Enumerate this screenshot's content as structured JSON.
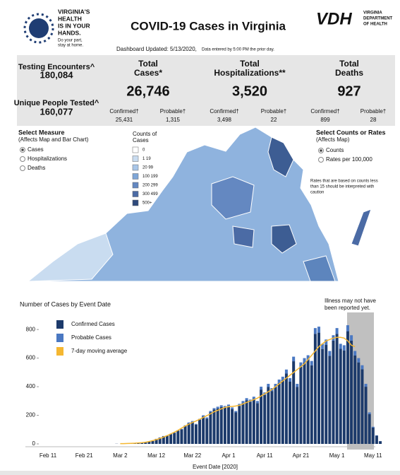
{
  "header": {
    "logo_lines": [
      "VIRGINIA'S",
      "HEALTH",
      "IS IN YOUR",
      "HANDS."
    ],
    "logo_tagline": [
      "Do your part,",
      "stay at home."
    ],
    "title": "COVID-19 Cases in Virginia",
    "agency_mark": "VDH",
    "agency_name": [
      "VIRGINIA",
      "DEPARTMENT",
      "OF HEALTH"
    ],
    "updated": "Dashboard Updated: 5/13/2020,",
    "updated_note": "Data entered by 5:00 PM the prior day."
  },
  "stats": {
    "testing": {
      "label": "Testing Encounters^",
      "value": "180,084"
    },
    "unique": {
      "label": "Unique People Tested^",
      "value": "160,077"
    },
    "cases": {
      "label": [
        "Total",
        "Cases*"
      ],
      "value": "26,746",
      "confirmed_label": "Confirmed†",
      "confirmed": "25,431",
      "probable_label": "Probable†",
      "probable": "1,315"
    },
    "hospitalizations": {
      "label": [
        "Total",
        "Hospitalizations**"
      ],
      "value": "3,520",
      "confirmed_label": "Confirmed†",
      "confirmed": "3,498",
      "probable_label": "Probable†",
      "probable": "22"
    },
    "deaths": {
      "label": [
        "Total",
        "Deaths"
      ],
      "value": "927",
      "confirmed_label": "Confirmed†",
      "confirmed": "899",
      "probable_label": "Probable†",
      "probable": "28"
    }
  },
  "controls": {
    "measure": {
      "title": "Select Measure",
      "subtitle": "(Affects Map and Bar Chart)",
      "options": [
        "Cases",
        "Hospitalizations",
        "Deaths"
      ],
      "selected": 0
    },
    "rate": {
      "title": "Select Counts or Rates",
      "subtitle": "(Affects Map)",
      "options": [
        "Counts",
        "Rates per 100,000"
      ],
      "selected": 0
    },
    "note": [
      "Rates that are based on counts less",
      "than 15 should be interpreted with",
      "caution"
    ]
  },
  "map_legend": {
    "title": [
      "Counts of",
      "Cases"
    ],
    "items": [
      {
        "label": "0",
        "color": "#ffffff"
      },
      {
        "label": "1 19",
        "color": "#c9dcf0"
      },
      {
        "label": "20 99",
        "color": "#a8c6e8"
      },
      {
        "label": "100 199",
        "color": "#7fa6d7"
      },
      {
        "label": "200 299",
        "color": "#6488c1"
      },
      {
        "label": "300 499",
        "color": "#4b6ba5"
      },
      {
        "label": "500+",
        "color": "#2f4a7c"
      }
    ]
  },
  "chart_data": {
    "type": "bar",
    "stacked": true,
    "title": "Number of Cases by Event Date",
    "x_label": "Event Date [2020]",
    "annotation": [
      "Illness may not have",
      "been reported yet."
    ],
    "categories": [
      "Feb 11",
      null,
      null,
      null,
      null,
      null,
      null,
      null,
      null,
      null,
      "Feb 21",
      null,
      null,
      null,
      null,
      null,
      null,
      null,
      null,
      null,
      "Mar 2",
      null,
      null,
      null,
      null,
      null,
      null,
      null,
      null,
      null,
      "Mar 12",
      null,
      null,
      null,
      null,
      null,
      null,
      null,
      null,
      null,
      "Mar 22",
      null,
      null,
      null,
      null,
      null,
      null,
      null,
      null,
      null,
      "Apr 1",
      null,
      null,
      null,
      null,
      null,
      null,
      null,
      null,
      null,
      "Apr 11",
      null,
      null,
      null,
      null,
      null,
      null,
      null,
      null,
      null,
      "Apr 21",
      null,
      null,
      null,
      null,
      null,
      null,
      null,
      null,
      null,
      "May 1",
      null,
      null,
      null,
      null,
      null,
      null,
      null,
      null,
      null,
      "May 11",
      null,
      null
    ],
    "series": [
      {
        "name": "Confirmed Cases",
        "color": "#1c3a6b",
        "values": [
          0,
          0,
          0,
          0,
          0,
          0,
          0,
          0,
          0,
          0,
          0,
          0,
          0,
          0,
          0,
          0,
          0,
          0,
          0,
          1,
          0,
          2,
          1,
          3,
          4,
          6,
          8,
          10,
          15,
          20,
          35,
          44,
          54,
          58,
          68,
          77,
          92,
          101,
          125,
          144,
          154,
          135,
          168,
          192,
          177,
          220,
          240,
          248,
          258,
          253,
          263,
          243,
          220,
          266,
          285,
          304,
          295,
          314,
          285,
          380,
          342,
          398,
          370,
          398,
          426,
          445,
          492,
          435,
          578,
          398,
          540,
          568,
          586,
          550,
          770,
          778,
          664,
          692,
          616,
          722,
          770,
          665,
          654,
          788,
          722,
          618,
          570,
          522,
          400,
          208,
          114,
          57,
          19
        ]
      },
      {
        "name": "Probable Cases",
        "color": "#4a78c2",
        "values": [
          0,
          0,
          0,
          0,
          0,
          0,
          0,
          0,
          0,
          0,
          0,
          0,
          0,
          0,
          0,
          0,
          0,
          0,
          0,
          0,
          0,
          0,
          0,
          0,
          0,
          0,
          0,
          0,
          0,
          0,
          0,
          1,
          1,
          2,
          2,
          3,
          3,
          4,
          5,
          6,
          6,
          5,
          7,
          8,
          8,
          10,
          10,
          12,
          12,
          12,
          12,
          12,
          10,
          14,
          15,
          16,
          15,
          16,
          15,
          20,
          18,
          22,
          20,
          22,
          24,
          25,
          28,
          25,
          32,
          22,
          30,
          32,
          34,
          30,
          40,
          42,
          36,
          38,
          34,
          38,
          40,
          35,
          36,
          42,
          38,
          32,
          30,
          28,
          20,
          12,
          6,
          3,
          1
        ]
      },
      {
        "name": "7-day moving average",
        "color": "#f5b731",
        "type": "line",
        "values": [
          null,
          null,
          null,
          null,
          null,
          null,
          null,
          null,
          null,
          null,
          null,
          null,
          null,
          null,
          null,
          null,
          null,
          null,
          null,
          null,
          2,
          2,
          3,
          4,
          5,
          7,
          9,
          12,
          17,
          23,
          30,
          38,
          48,
          58,
          70,
          82,
          95,
          110,
          125,
          138,
          150,
          160,
          172,
          185,
          198,
          210,
          225,
          235,
          245,
          255,
          260,
          262,
          265,
          270,
          280,
          290,
          300,
          310,
          320,
          335,
          350,
          365,
          380,
          400,
          420,
          440,
          460,
          480,
          500,
          520,
          540,
          560,
          590,
          620,
          650,
          680,
          700,
          720,
          730,
          740,
          745,
          745,
          740,
          720,
          690,
          680,
          null,
          null,
          null,
          null,
          null,
          null,
          null
        ]
      }
    ],
    "ylim": [
      0,
      870
    ],
    "yticks": [
      0,
      200,
      400,
      600,
      800
    ],
    "grid": false,
    "legend": "top-left"
  }
}
